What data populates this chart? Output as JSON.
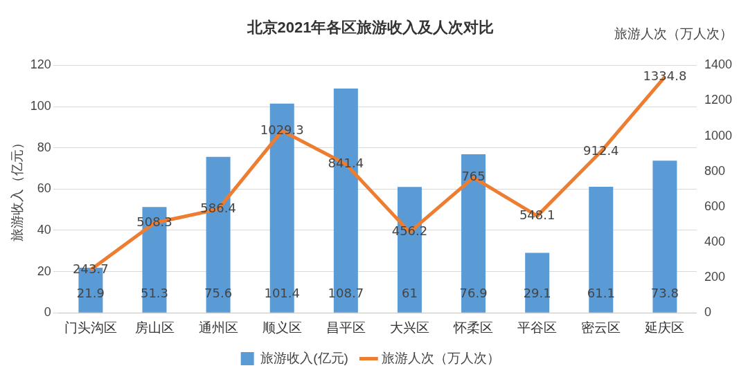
{
  "chart_data": {
    "type": "bar",
    "title": "北京2021年各区旅游收入及人次对比",
    "ylabel": "旅游收入（亿元）",
    "y2label": "旅游人次（万人次）",
    "categories": [
      "门头沟区",
      "房山区",
      "通州区",
      "顺义区",
      "昌平区",
      "大兴区",
      "怀柔区",
      "平谷区",
      "密云区",
      "延庆区"
    ],
    "series": [
      {
        "name": "旅游收入(亿元)",
        "color": "#5b9bd5",
        "values": [
          21.9,
          51.3,
          75.6,
          101.4,
          108.7,
          61,
          76.9,
          29.1,
          61.1,
          73.8
        ]
      },
      {
        "name": "旅游人次（万人次）",
        "type": "line",
        "axis": "y2",
        "color": "#ed7d31",
        "values": [
          243.7,
          508.3,
          586.4,
          1029.3,
          841.4,
          456.2,
          765,
          548.1,
          912.4,
          1334.8
        ]
      }
    ],
    "ylim": [
      0,
      120
    ],
    "yticks": [
      0,
      20,
      40,
      60,
      80,
      100,
      120
    ],
    "y2lim": [
      0,
      1400
    ],
    "y2ticks": [
      0,
      200,
      400,
      600,
      800,
      1000,
      1200,
      1400
    ],
    "grid": "y",
    "legend": "bottom",
    "data_labels": true,
    "marker": "none",
    "line_style": "solid"
  }
}
